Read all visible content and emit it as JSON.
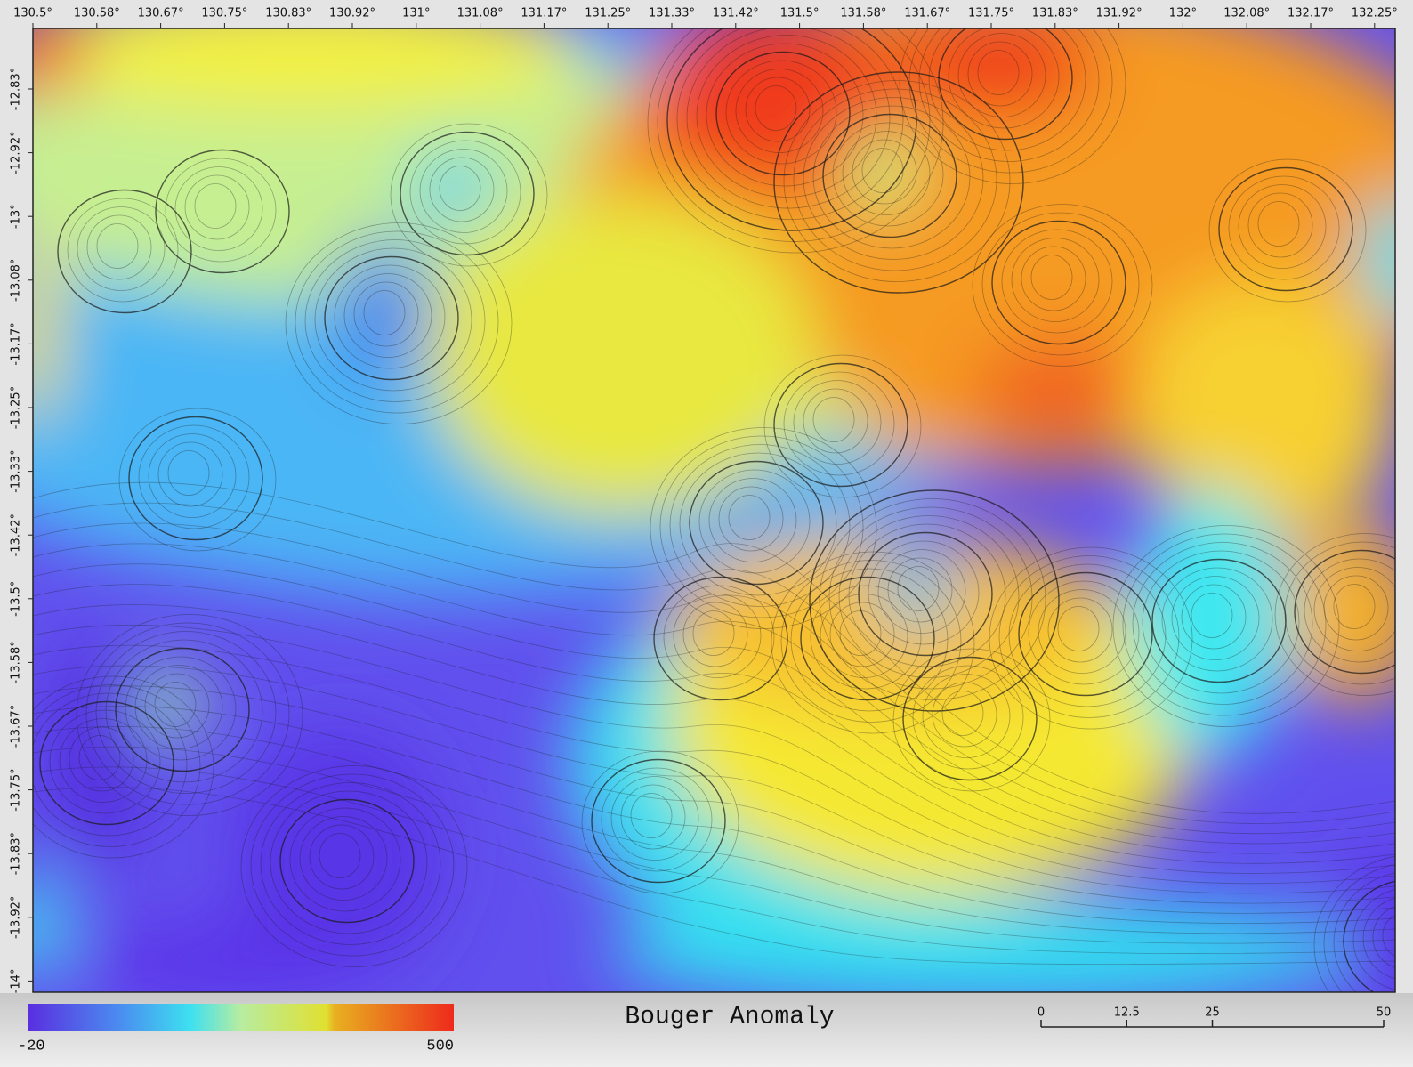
{
  "map": {
    "lon_ticks": [
      "130.5°",
      "130.58°",
      "130.67°",
      "130.75°",
      "130.83°",
      "130.92°",
      "131°",
      "131.08°",
      "131.17°",
      "131.25°",
      "131.33°",
      "131.42°",
      "131.5°",
      "131.58°",
      "131.67°",
      "131.75°",
      "131.83°",
      "131.92°",
      "132°",
      "132.08°",
      "132.17°",
      "132.25°"
    ],
    "lat_ticks": [
      "-12.83°",
      "-12.92°",
      "-13°",
      "-13.08°",
      "-13.17°",
      "-13.25°",
      "-13.33°",
      "-13.42°",
      "-13.5°",
      "-13.58°",
      "-13.67°",
      "-13.75°",
      "-13.83°",
      "-13.92°",
      "-14°"
    ]
  },
  "legend": {
    "title": "Bouger Anomaly",
    "min": -20,
    "max": 500
  },
  "scale_bar": {
    "ticks": [
      0,
      12.5,
      25,
      50
    ]
  }
}
